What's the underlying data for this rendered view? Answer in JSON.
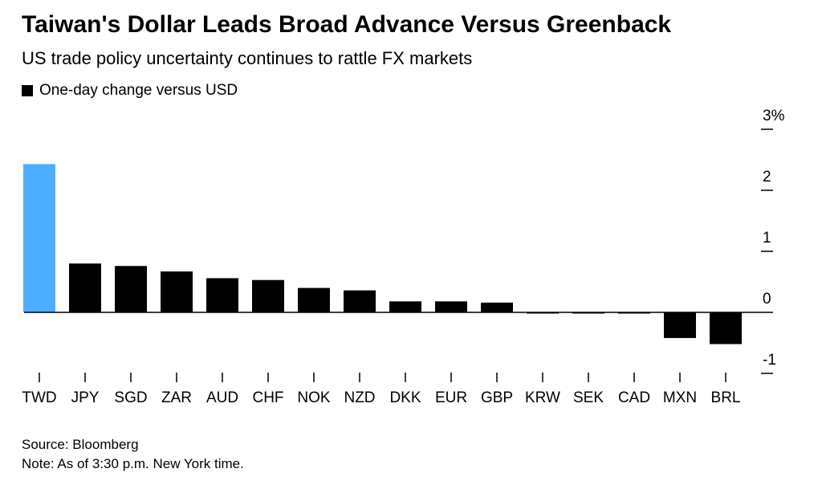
{
  "chart_data": {
    "type": "bar",
    "title": "Taiwan's Dollar Leads Broad Advance Versus Greenback",
    "subtitle": "US trade policy uncertainty continues to rattle FX markets",
    "legend": [
      {
        "name": "One-day change versus USD",
        "color": "#000000"
      }
    ],
    "categories": [
      "TWD",
      "JPY",
      "SGD",
      "ZAR",
      "AUD",
      "CHF",
      "NOK",
      "NZD",
      "DKK",
      "EUR",
      "GBP",
      "KRW",
      "SEK",
      "CAD",
      "MXN",
      "BRL"
    ],
    "series": [
      {
        "name": "One-day change versus USD",
        "values": [
          2.43,
          0.8,
          0.76,
          0.67,
          0.56,
          0.53,
          0.4,
          0.36,
          0.18,
          0.18,
          0.16,
          -0.01,
          -0.01,
          -0.01,
          -0.42,
          -0.52
        ]
      }
    ],
    "highlight_index": 0,
    "colors": {
      "default": "#000000",
      "highlight": "#4DAEFF"
    },
    "yticks": [
      -1,
      0,
      1,
      2,
      3
    ],
    "ytick_labels": [
      "-1",
      "0",
      "1",
      "2",
      "3%"
    ],
    "ylim": [
      -1,
      3
    ],
    "axis_position": "right",
    "source": "Source: Bloomberg",
    "note": "Note: As of 3:30 p.m. New York time."
  }
}
